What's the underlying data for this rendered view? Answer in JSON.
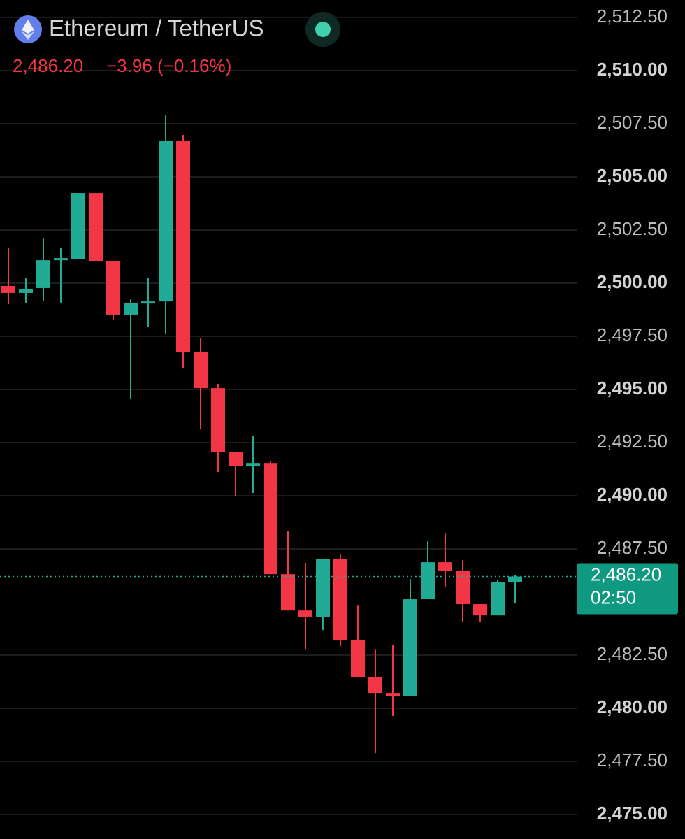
{
  "header": {
    "title": "Ethereum / TetherUS",
    "quote": "2,486.20",
    "change": "−3.96 (−0.16%)"
  },
  "chart_data": {
    "type": "candlestick",
    "up_color": "#22ab94",
    "down_color": "#f23645",
    "grid": true,
    "ylim": [
      2473.85,
      2513.32
    ],
    "yticks": [
      {
        "value": 2512.5,
        "label": "2,512.50"
      },
      {
        "value": 2510,
        "label": "2,510.00"
      },
      {
        "value": 2507.5,
        "label": "2,507.50"
      },
      {
        "value": 2505,
        "label": "2,505.00"
      },
      {
        "value": 2502.5,
        "label": "2,502.50"
      },
      {
        "value": 2500,
        "label": "2,500.00"
      },
      {
        "value": 2497.5,
        "label": "2,497.50"
      },
      {
        "value": 2495,
        "label": "2,495.00"
      },
      {
        "value": 2492.5,
        "label": "2,492.50"
      },
      {
        "value": 2490,
        "label": "2,490.00"
      },
      {
        "value": 2487.5,
        "label": "2,487.50"
      },
      {
        "value": 2482.5,
        "label": "2,482.50"
      },
      {
        "value": 2480,
        "label": "2,480.00"
      },
      {
        "value": 2477.5,
        "label": "2,477.50"
      },
      {
        "value": 2475,
        "label": "2,475.00"
      }
    ],
    "price_line": {
      "value": 2486.2,
      "label": "2,486.20",
      "countdown": "02:50"
    },
    "series": [
      {
        "name": "ETHUSDT",
        "open": [
          2499.87,
          2499.54,
          2499.77,
          2501.12,
          2501.15,
          2504.24,
          2501.02,
          2498.52,
          2499.08,
          2499.14,
          2506.71,
          2496.77,
          2495.06,
          2492.04,
          2491.38,
          2491.54,
          2486.31,
          2484.6,
          2484.31,
          2487.04,
          2483.19,
          2481.48,
          2480.72,
          2480.59,
          2485.13,
          2486.87,
          2486.45,
          2484.9,
          2484.37,
          2485.95
        ],
        "high": [
          2501.64,
          2500.23,
          2502.1,
          2501.64,
          2504.24,
          2504.24,
          2501.02,
          2499.24,
          2500.23,
          2507.89,
          2506.97,
          2497.4,
          2495.26,
          2492.04,
          2492.83,
          2491.61,
          2488.32,
          2486.84,
          2487.04,
          2487.23,
          2484.83,
          2482.79,
          2482.99,
          2486.08,
          2487.86,
          2488.22,
          2486.97,
          2484.9,
          2486.05,
          2486.25
        ],
        "low": [
          2499.01,
          2499.08,
          2499.18,
          2499.08,
          2501.15,
          2501.02,
          2498.25,
          2494.54,
          2497.93,
          2497.6,
          2495.98,
          2493.12,
          2491.12,
          2490.0,
          2490.13,
          2486.31,
          2484.6,
          2482.79,
          2483.68,
          2482.93,
          2481.48,
          2477.89,
          2479.64,
          2480.59,
          2485.13,
          2485.69,
          2484.04,
          2484.04,
          2484.37,
          2484.93
        ],
        "close": [
          2499.54,
          2499.73,
          2501.08,
          2501.18,
          2504.24,
          2501.02,
          2498.52,
          2499.08,
          2499.14,
          2506.71,
          2496.77,
          2495.06,
          2492.04,
          2491.38,
          2491.54,
          2486.31,
          2484.6,
          2484.31,
          2487.04,
          2483.19,
          2481.48,
          2480.72,
          2480.59,
          2485.13,
          2486.87,
          2486.45,
          2484.9,
          2484.37,
          2485.95,
          2486.2
        ]
      }
    ]
  }
}
